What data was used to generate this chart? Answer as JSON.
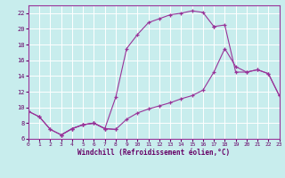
{
  "xlabel": "Windchill (Refroidissement éolien,°C)",
  "xlim": [
    0,
    23
  ],
  "ylim": [
    6,
    23
  ],
  "xticks": [
    0,
    1,
    2,
    3,
    4,
    5,
    6,
    7,
    8,
    9,
    10,
    11,
    12,
    13,
    14,
    15,
    16,
    17,
    18,
    19,
    20,
    21,
    22,
    23
  ],
  "yticks": [
    6,
    8,
    10,
    12,
    14,
    16,
    18,
    20,
    22
  ],
  "bg_color": "#c8eded",
  "line_color": "#993399",
  "grid_color": "#ffffff",
  "seg1_x": [
    0,
    1,
    2,
    3,
    4,
    5,
    6,
    7,
    8
  ],
  "seg1_y": [
    9.5,
    8.8,
    7.2,
    6.5,
    7.3,
    7.8,
    8.0,
    7.3,
    7.2
  ],
  "seg2_x": [
    3,
    4,
    5,
    6,
    7,
    8,
    9,
    10,
    11,
    12,
    13,
    14,
    15,
    16,
    17
  ],
  "seg2_y": [
    6.5,
    7.3,
    7.8,
    8.0,
    7.3,
    11.3,
    17.5,
    19.3,
    20.8,
    21.3,
    21.8,
    22.0,
    22.3,
    22.1,
    20.3
  ],
  "seg3_x": [
    0,
    1,
    2,
    3,
    4,
    5,
    6,
    7,
    8,
    9,
    10,
    11,
    12,
    13,
    14,
    15,
    16,
    17,
    18,
    19,
    20,
    21,
    22,
    23
  ],
  "seg3_y": [
    9.5,
    8.8,
    7.2,
    6.5,
    7.3,
    7.8,
    8.0,
    7.3,
    7.2,
    8.5,
    9.3,
    9.8,
    10.2,
    10.6,
    11.1,
    11.5,
    12.2,
    14.5,
    17.5,
    15.2,
    14.5,
    14.8,
    14.3,
    11.5
  ],
  "seg4_x": [
    17,
    18,
    19,
    20,
    21,
    22,
    23
  ],
  "seg4_y": [
    20.3,
    20.5,
    14.5,
    14.5,
    14.8,
    14.3,
    11.5
  ]
}
